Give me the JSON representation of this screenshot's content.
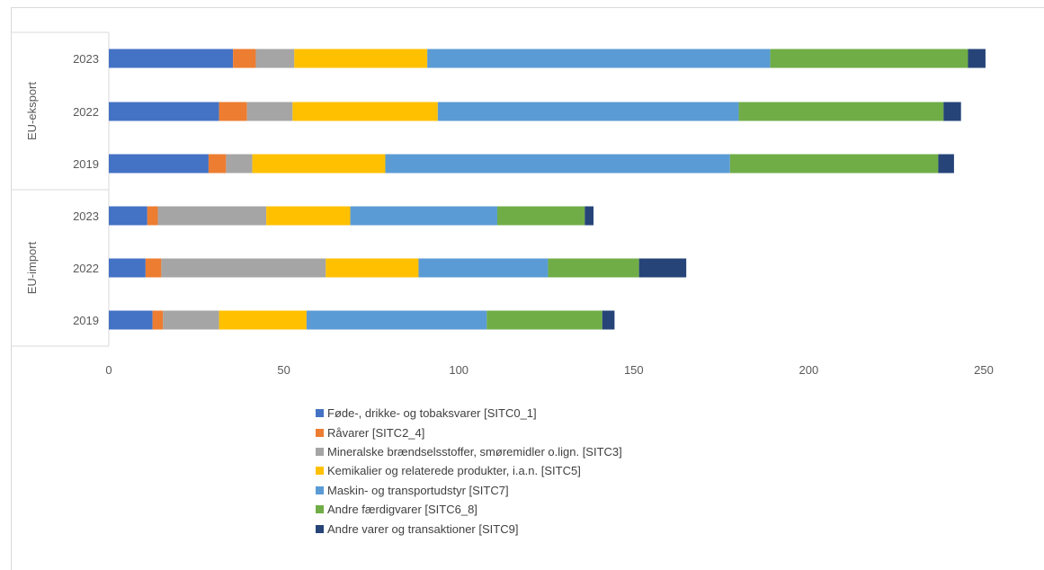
{
  "chart_data": {
    "type": "bar",
    "orientation": "horizontal",
    "stacked": true,
    "groups": [
      {
        "label": "EU-eksport",
        "categories": [
          "2023",
          "2022",
          "2019"
        ]
      },
      {
        "label": "EU-import",
        "categories": [
          "2023",
          "2022",
          "2019"
        ]
      }
    ],
    "xlim": [
      0,
      250
    ],
    "xticks": [
      "0",
      "50",
      "100",
      "150",
      "200",
      "250"
    ],
    "grid": false,
    "legend_position": "bottom",
    "series": [
      {
        "name": "Føde-, drikke- og tobaksvarer [SITC0_1]",
        "color": "#4472c4",
        "values": [
          35.5,
          31.5,
          28.5,
          11,
          10.5,
          12.5
        ]
      },
      {
        "name": "Råvarer [SITC2_4]",
        "color": "#ed7d31",
        "values": [
          6.5,
          8,
          5,
          3,
          4.5,
          3
        ]
      },
      {
        "name": "Mineralske brændselsstoffer, smøremidler o.lign. [SITC3]",
        "color": "#a5a5a5",
        "values": [
          11,
          13,
          7.5,
          31,
          47,
          16
        ]
      },
      {
        "name": "Kemikalier og relaterede produkter, i.a.n. [SITC5]",
        "color": "#ffc000",
        "values": [
          38,
          41.5,
          38,
          24,
          26.5,
          25
        ]
      },
      {
        "name": "Maskin- og transportudstyr [SITC7]",
        "color": "#5b9bd5",
        "values": [
          98,
          86,
          98.5,
          42,
          37,
          51.5
        ]
      },
      {
        "name": "Andre færdigvarer [SITC6_8]",
        "color": "#70ad47",
        "values": [
          56.5,
          58.5,
          59.5,
          25,
          26,
          33
        ]
      },
      {
        "name": "Andre varer og transaktioner [SITC9]",
        "color": "#264478",
        "values": [
          5,
          5,
          4.5,
          2.5,
          13.5,
          3.5
        ]
      }
    ]
  }
}
